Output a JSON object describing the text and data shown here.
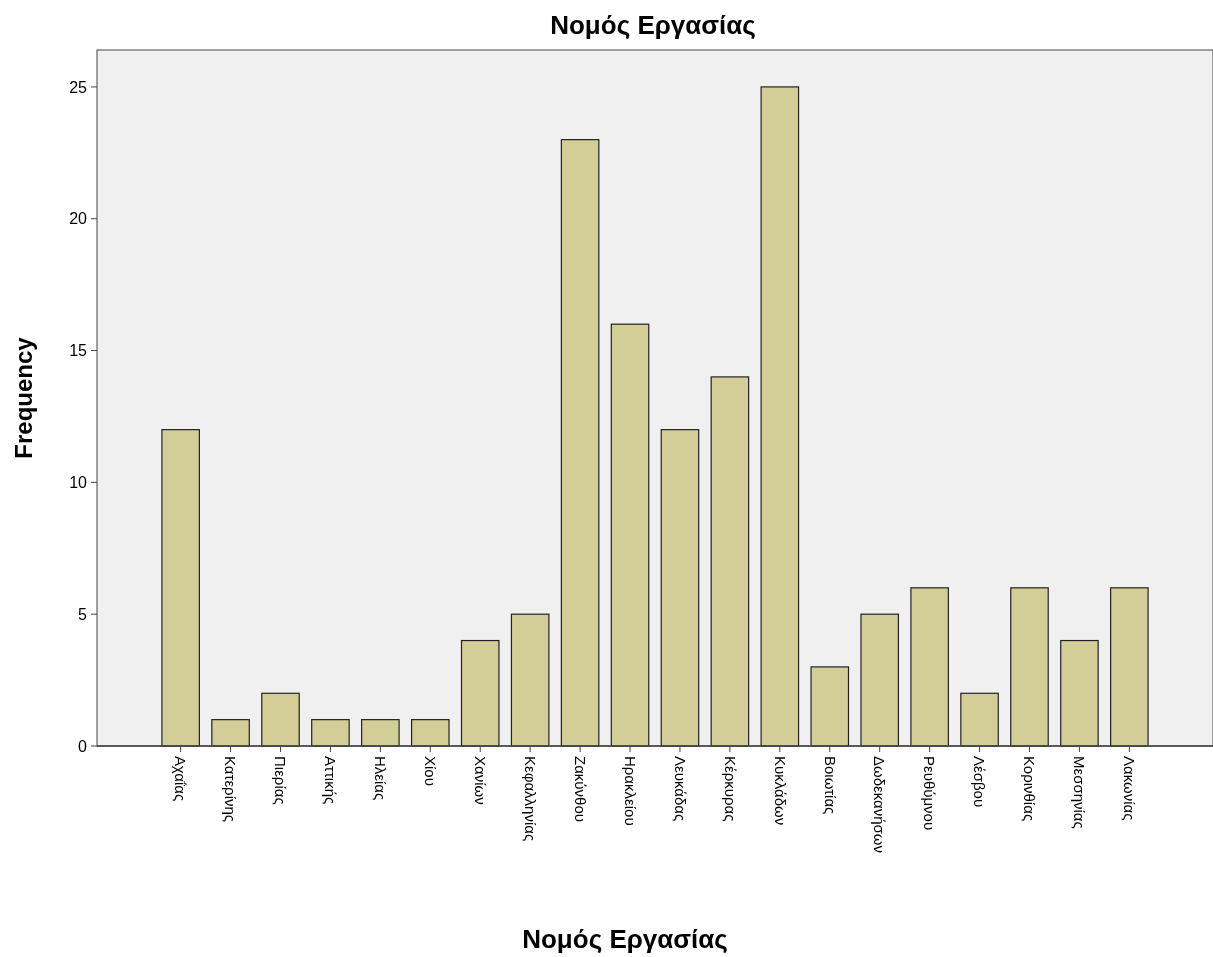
{
  "chart_data": {
    "type": "bar",
    "title": "Νομός Εργασίας",
    "xlabel": "Νομός Εργασίας",
    "ylabel": "Frequency",
    "categories": [
      "Αχαΐας",
      "Κατερίνης",
      "Πιερίας",
      "Αττικής",
      "Ηλείας",
      "Χίου",
      "Χανίων",
      "Κεφαλληνίας",
      "Ζακύνθου",
      "Ηρακλείου",
      "Λευκάδας",
      "Κέρκυρας",
      "Κυκλάδων",
      "Βοιωτίας",
      "Δωδεκανήσων",
      "Ρευθύμνου",
      "Λέσβου",
      "Κορινθίας",
      "Μεσσηνίας",
      "Λακωνίας"
    ],
    "values": [
      12,
      1,
      2,
      1,
      1,
      1,
      4,
      5,
      23,
      16,
      12,
      14,
      25,
      3,
      5,
      6,
      2,
      6,
      4,
      6
    ],
    "color": "#d3ce97",
    "ylim": [
      0,
      26.4
    ],
    "yticks": [
      0,
      5,
      10,
      15,
      20,
      25
    ],
    "grid": false
  }
}
